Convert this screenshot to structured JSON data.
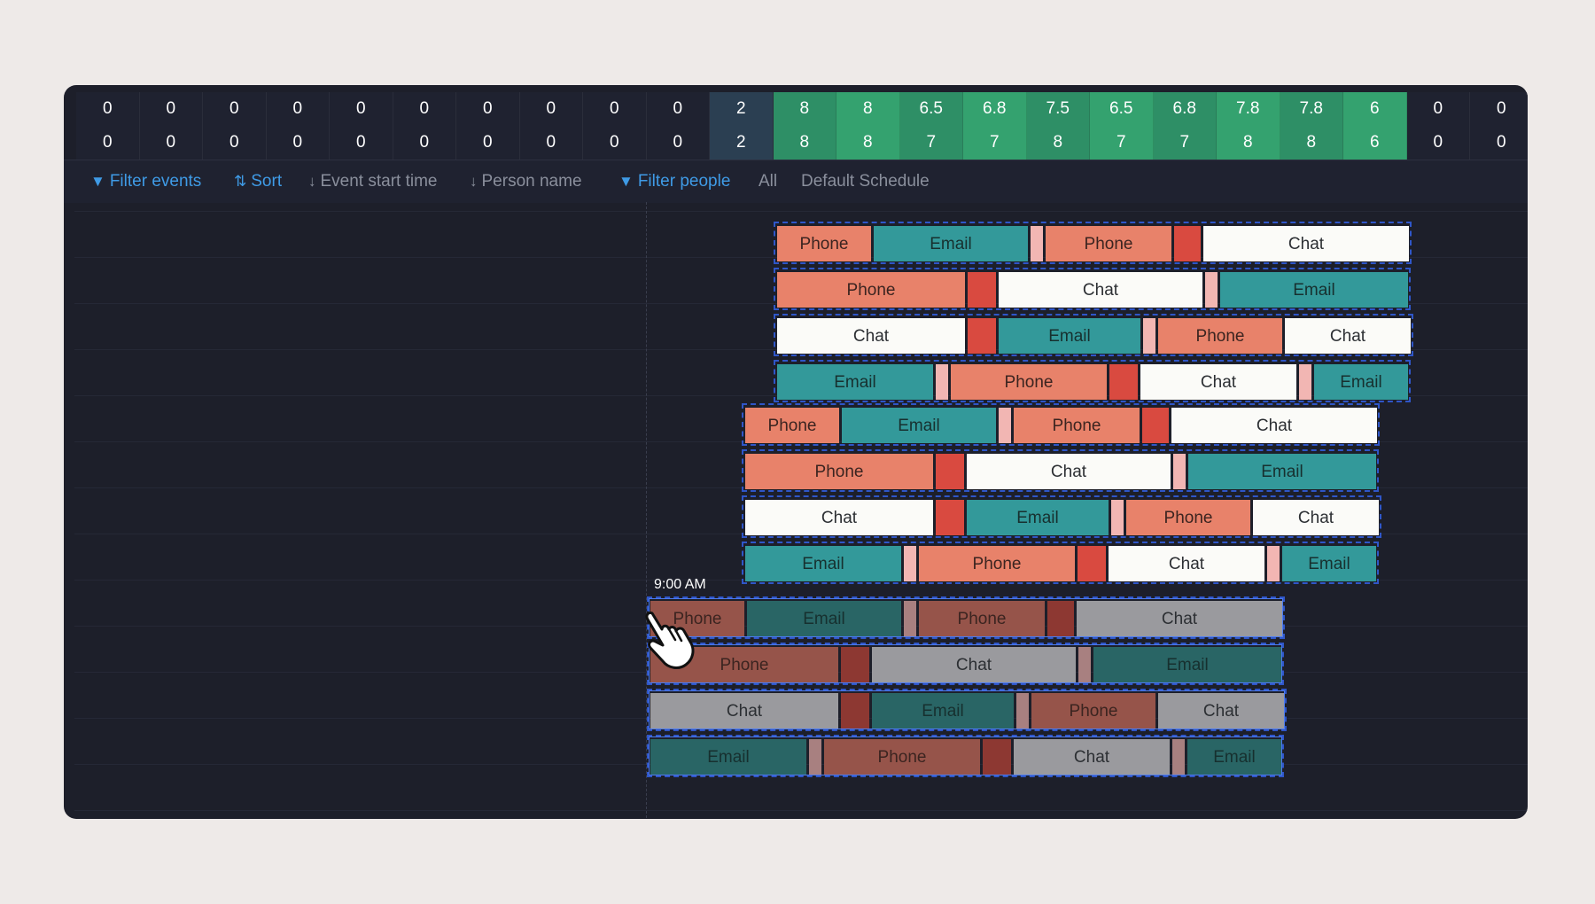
{
  "counts": {
    "row1": [
      "0",
      "0",
      "0",
      "0",
      "0",
      "0",
      "0",
      "0",
      "0",
      "0",
      "2",
      "8",
      "8",
      "6.5",
      "6.8",
      "7.5",
      "6.5",
      "6.8",
      "7.8",
      "7.8",
      "6",
      "0",
      "0"
    ],
    "row2": [
      "0",
      "0",
      "0",
      "0",
      "0",
      "0",
      "0",
      "0",
      "0",
      "0",
      "2",
      "8",
      "8",
      "7",
      "7",
      "8",
      "7",
      "7",
      "8",
      "8",
      "6",
      "0",
      "0"
    ]
  },
  "toolbar": {
    "filter_events": "Filter events",
    "sort": "Sort",
    "event_start_time": "Event start time",
    "person_name": "Person name",
    "filter_people": "Filter people",
    "all": "All",
    "default_schedule": "Default Schedule"
  },
  "labels": {
    "phone": "Phone",
    "email": "Email",
    "chat": "Chat"
  },
  "time_label": "9:00 AM",
  "colors": {
    "phone": "#e8826a",
    "email": "#33999a",
    "chat": "#fbfbf8",
    "break_red": "#d94a40",
    "break_pink": "#f2b6b3",
    "count_green": "#2e8f66",
    "accent_blue": "#3f9be6"
  },
  "schedule_groups": [
    {
      "state": "normal",
      "rows": [
        [
          "phone",
          "email",
          "pink",
          "phone",
          "red",
          "chat"
        ],
        [
          "phone",
          "red",
          "chat",
          "pink",
          "email"
        ],
        [
          "chat",
          "red",
          "email",
          "pink",
          "phone",
          "chat"
        ],
        [
          "email",
          "pink",
          "phone",
          "red",
          "chat",
          "pink",
          "email"
        ]
      ]
    },
    {
      "state": "normal",
      "rows": [
        [
          "phone",
          "email",
          "pink",
          "phone",
          "red",
          "chat"
        ],
        [
          "phone",
          "red",
          "chat",
          "pink",
          "email"
        ],
        [
          "chat",
          "red",
          "email",
          "pink",
          "phone",
          "chat"
        ],
        [
          "email",
          "pink",
          "phone",
          "red",
          "chat",
          "pink",
          "email"
        ]
      ]
    },
    {
      "state": "dragging",
      "rows": [
        [
          "phone",
          "email",
          "pink",
          "phone",
          "red",
          "chat"
        ],
        [
          "phone",
          "red",
          "chat",
          "pink",
          "email"
        ],
        [
          "chat",
          "red",
          "email",
          "pink",
          "phone",
          "chat"
        ],
        [
          "email",
          "pink",
          "phone",
          "red",
          "chat",
          "pink",
          "email"
        ]
      ]
    }
  ]
}
